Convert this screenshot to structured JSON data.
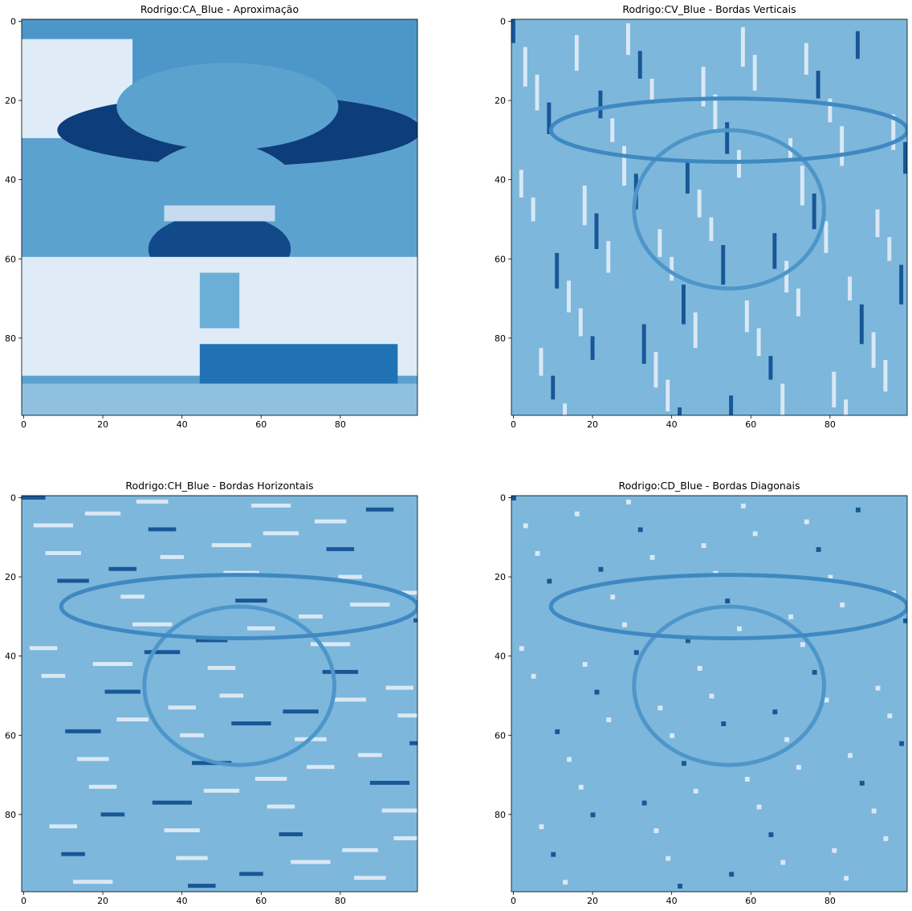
{
  "chart_data": [
    {
      "type": "heatmap",
      "title": "Rodrigo:CA_Blue - Aproximação",
      "colormap": "Blues",
      "xlim": [
        0,
        99
      ],
      "ylim": [
        99,
        0
      ],
      "xticks": [
        "0",
        "20",
        "40",
        "60",
        "80"
      ],
      "yticks": [
        "0",
        "20",
        "40",
        "60",
        "80"
      ],
      "image_kind": "approximation"
    },
    {
      "type": "heatmap",
      "title": "Rodrigo:CV_Blue - Bordas Verticais",
      "colormap": "Blues",
      "xlim": [
        0,
        99
      ],
      "ylim": [
        99,
        0
      ],
      "xticks": [
        "0",
        "20",
        "40",
        "60",
        "80"
      ],
      "yticks": [
        "0",
        "20",
        "40",
        "60",
        "80"
      ],
      "image_kind": "vertical-edges"
    },
    {
      "type": "heatmap",
      "title": "Rodrigo:CH_Blue - Bordas Horizontais",
      "colormap": "Blues",
      "xlim": [
        0,
        99
      ],
      "ylim": [
        99,
        0
      ],
      "xticks": [
        "0",
        "20",
        "40",
        "60",
        "80"
      ],
      "yticks": [
        "0",
        "20",
        "40",
        "60",
        "80"
      ],
      "image_kind": "horizontal-edges"
    },
    {
      "type": "heatmap",
      "title": "Rodrigo:CD_Blue - Bordas Diagonais",
      "colormap": "Blues",
      "xlim": [
        0,
        99
      ],
      "ylim": [
        99,
        0
      ],
      "xticks": [
        "0",
        "20",
        "40",
        "60",
        "80"
      ],
      "yticks": [
        "0",
        "20",
        "40",
        "60",
        "80"
      ],
      "image_kind": "diagonal-edges"
    }
  ]
}
